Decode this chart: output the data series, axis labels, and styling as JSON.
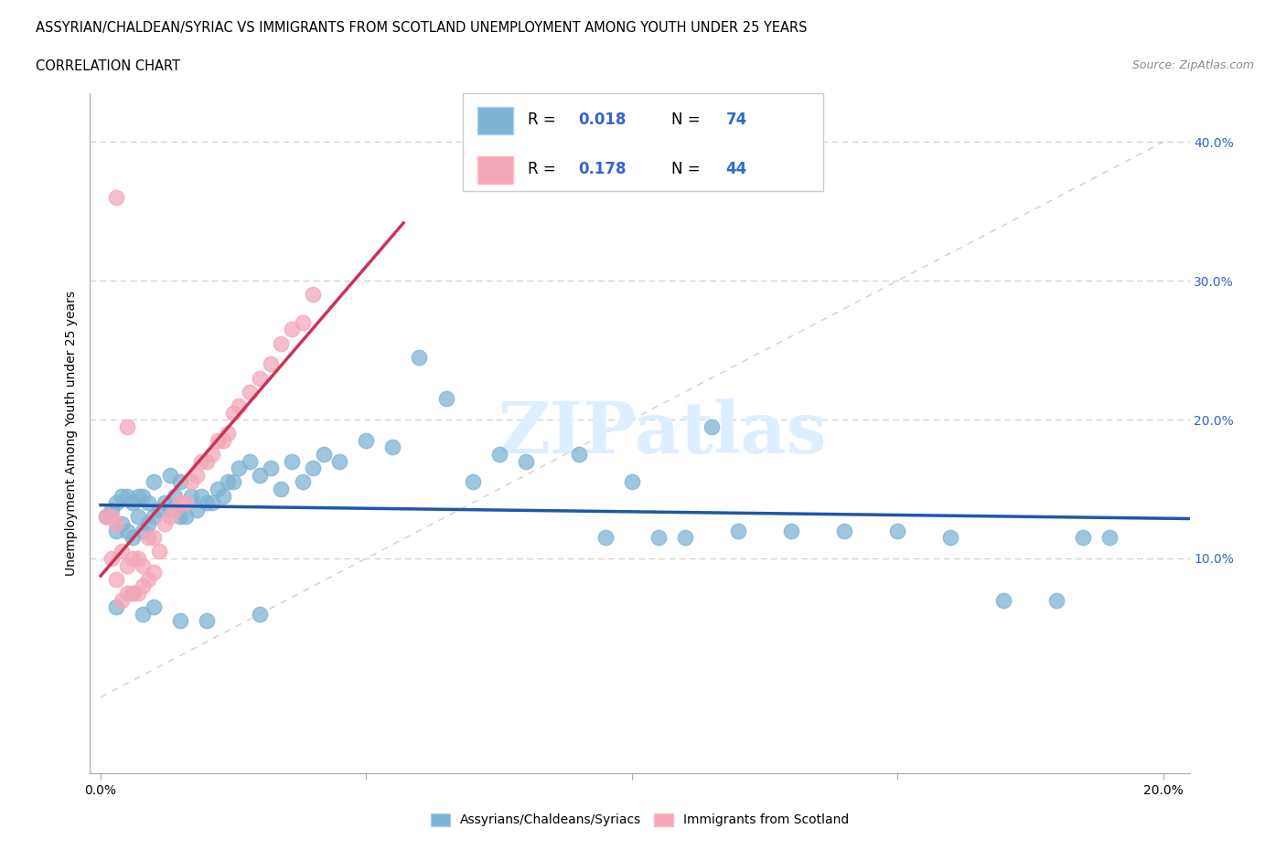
{
  "title_line1": "ASSYRIAN/CHALDEAN/SYRIAC VS IMMIGRANTS FROM SCOTLAND UNEMPLOYMENT AMONG YOUTH UNDER 25 YEARS",
  "title_line2": "CORRELATION CHART",
  "source_text": "Source: ZipAtlas.com",
  "ylabel": "Unemployment Among Youth under 25 years",
  "xlim": [
    -0.002,
    0.205
  ],
  "ylim": [
    -0.055,
    0.435
  ],
  "xtick_vals": [
    0.0,
    0.05,
    0.1,
    0.15,
    0.2
  ],
  "xtick_labels": [
    "0.0%",
    "",
    "",
    "",
    "20.0%"
  ],
  "ytick_vals": [
    0.1,
    0.2,
    0.3,
    0.4
  ],
  "ytick_labels": [
    "10.0%",
    "20.0%",
    "30.0%",
    "40.0%"
  ],
  "grid_color": "#cccccc",
  "blue_color": "#7fb3d3",
  "pink_color": "#f4a7b9",
  "blue_line_color": "#2255aa",
  "pink_line_color": "#cc3355",
  "ref_line_color": "#ddbbbb",
  "legend_R_color": "#3366cc",
  "legend_N_color": "#3366cc",
  "watermark_text": "ZIPatlas",
  "watermark_color": "#ddeeff",
  "blue_scatter_x": [
    0.001,
    0.002,
    0.003,
    0.003,
    0.004,
    0.004,
    0.005,
    0.005,
    0.006,
    0.006,
    0.007,
    0.007,
    0.008,
    0.008,
    0.009,
    0.009,
    0.01,
    0.01,
    0.011,
    0.012,
    0.013,
    0.013,
    0.014,
    0.015,
    0.015,
    0.016,
    0.017,
    0.018,
    0.019,
    0.02,
    0.021,
    0.022,
    0.023,
    0.024,
    0.025,
    0.026,
    0.028,
    0.03,
    0.032,
    0.034,
    0.036,
    0.038,
    0.04,
    0.042,
    0.045,
    0.05,
    0.055,
    0.06,
    0.065,
    0.07,
    0.075,
    0.08,
    0.09,
    0.095,
    0.1,
    0.105,
    0.11,
    0.115,
    0.12,
    0.13,
    0.14,
    0.15,
    0.16,
    0.17,
    0.18,
    0.185,
    0.19,
    0.003,
    0.006,
    0.008,
    0.01,
    0.015,
    0.02,
    0.03
  ],
  "blue_scatter_y": [
    0.13,
    0.135,
    0.12,
    0.14,
    0.125,
    0.145,
    0.12,
    0.145,
    0.115,
    0.14,
    0.13,
    0.145,
    0.12,
    0.145,
    0.125,
    0.14,
    0.13,
    0.155,
    0.135,
    0.14,
    0.135,
    0.16,
    0.145,
    0.13,
    0.155,
    0.13,
    0.145,
    0.135,
    0.145,
    0.14,
    0.14,
    0.15,
    0.145,
    0.155,
    0.155,
    0.165,
    0.17,
    0.16,
    0.165,
    0.15,
    0.17,
    0.155,
    0.165,
    0.175,
    0.17,
    0.185,
    0.18,
    0.245,
    0.215,
    0.155,
    0.175,
    0.17,
    0.175,
    0.115,
    0.155,
    0.115,
    0.115,
    0.195,
    0.12,
    0.12,
    0.12,
    0.12,
    0.115,
    0.07,
    0.07,
    0.115,
    0.115,
    0.065,
    0.075,
    0.06,
    0.065,
    0.055,
    0.055,
    0.06
  ],
  "pink_scatter_x": [
    0.001,
    0.002,
    0.002,
    0.003,
    0.003,
    0.004,
    0.004,
    0.005,
    0.005,
    0.006,
    0.006,
    0.007,
    0.007,
    0.008,
    0.008,
    0.009,
    0.009,
    0.01,
    0.01,
    0.011,
    0.012,
    0.013,
    0.014,
    0.015,
    0.016,
    0.017,
    0.018,
    0.019,
    0.02,
    0.021,
    0.022,
    0.023,
    0.024,
    0.025,
    0.026,
    0.028,
    0.03,
    0.032,
    0.034,
    0.036,
    0.038,
    0.04,
    0.003,
    0.005
  ],
  "pink_scatter_y": [
    0.13,
    0.1,
    0.13,
    0.085,
    0.125,
    0.07,
    0.105,
    0.075,
    0.095,
    0.075,
    0.1,
    0.075,
    0.1,
    0.08,
    0.095,
    0.085,
    0.115,
    0.09,
    0.115,
    0.105,
    0.125,
    0.13,
    0.135,
    0.14,
    0.14,
    0.155,
    0.16,
    0.17,
    0.17,
    0.175,
    0.185,
    0.185,
    0.19,
    0.205,
    0.21,
    0.22,
    0.23,
    0.24,
    0.255,
    0.265,
    0.27,
    0.29,
    0.36,
    0.195
  ]
}
